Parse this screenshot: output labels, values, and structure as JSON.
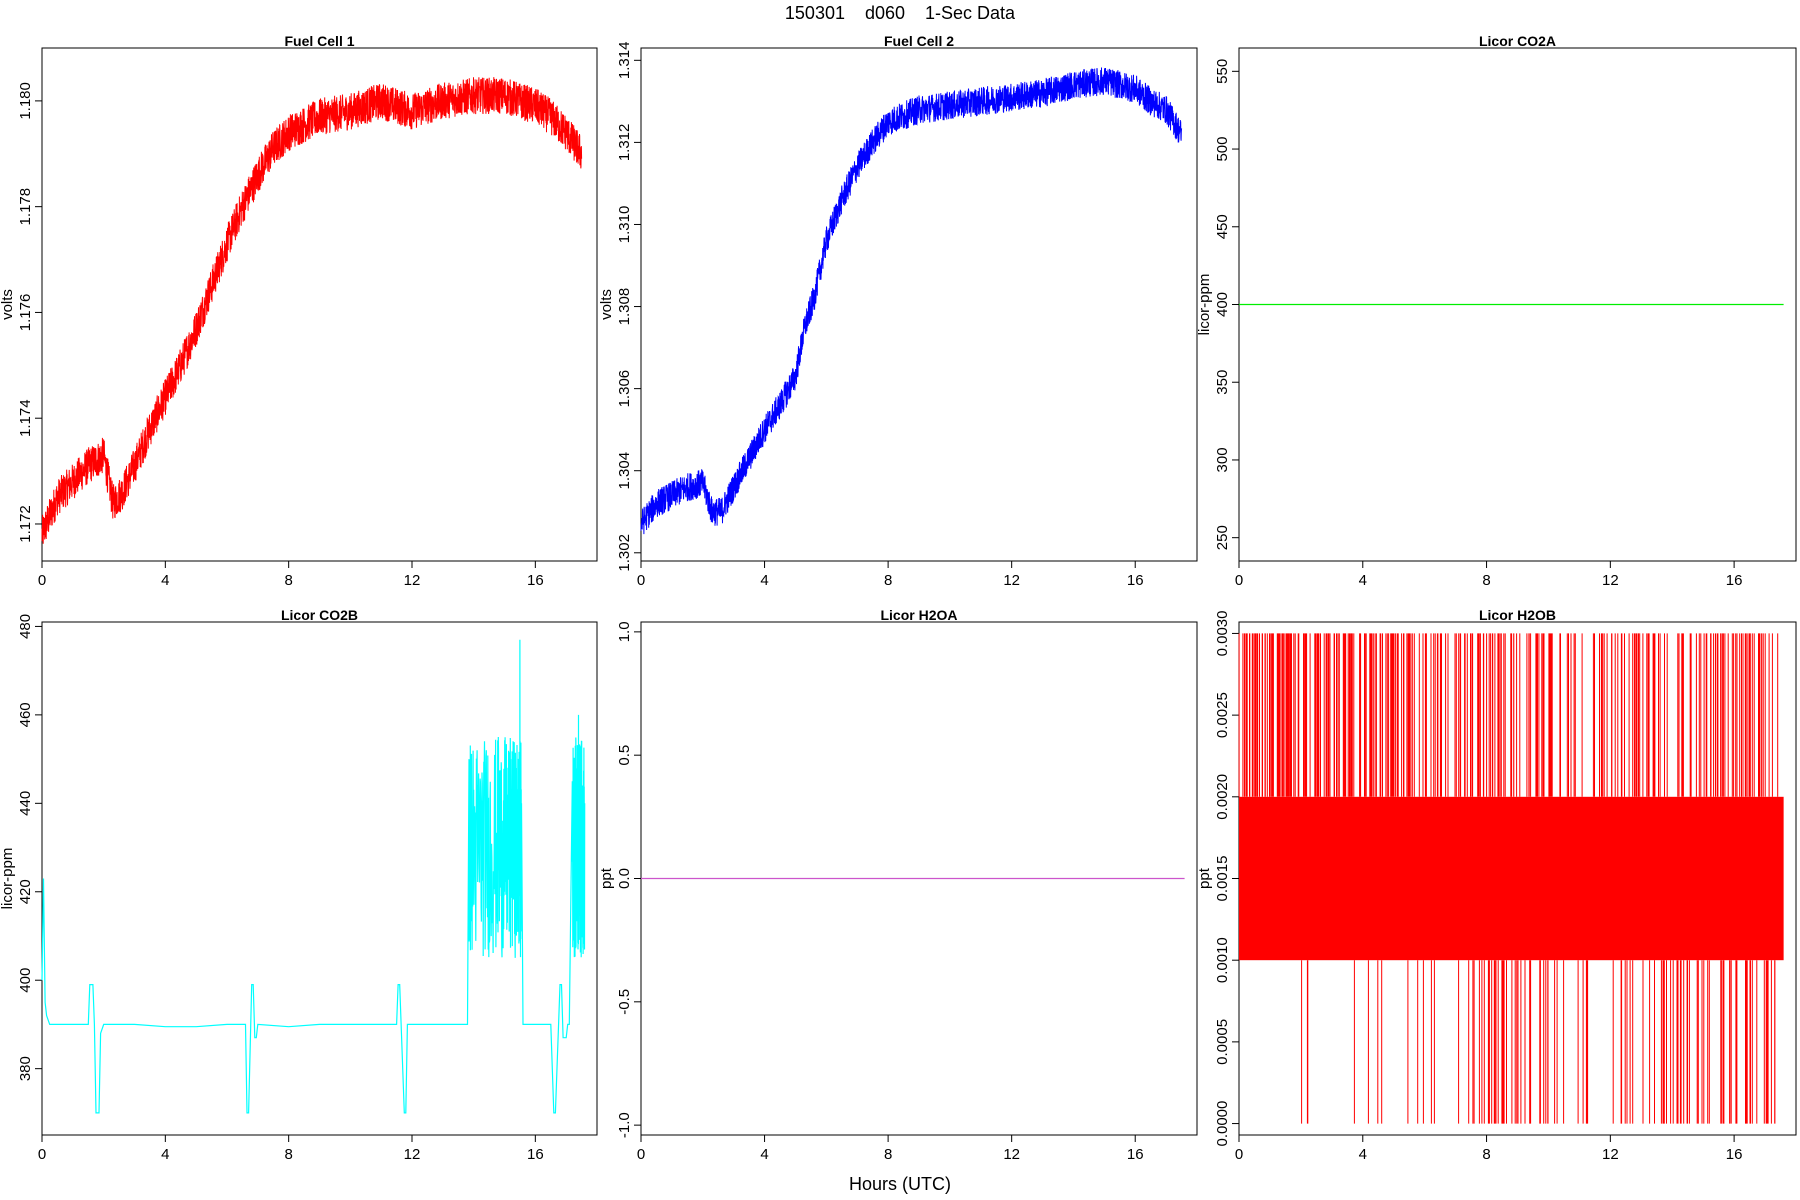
{
  "title": "150301    d060    1-Sec Data",
  "xlabel": "Hours (UTC)",
  "chart_data": [
    {
      "type": "line",
      "title": "Fuel Cell 1",
      "ylabel": "volts",
      "color": "#ff0000",
      "xlim": [
        0,
        18
      ],
      "ylim": [
        1.1713,
        1.181
      ],
      "xticks": [
        0,
        4,
        8,
        12,
        16
      ],
      "yticks": [
        1.172,
        1.174,
        1.176,
        1.178,
        1.18
      ],
      "ytick_labels": [
        "1.172",
        "1.174",
        "1.176",
        "1.178",
        "1.180"
      ],
      "noise": 0.00035,
      "x": [
        0,
        0.5,
        1,
        1.5,
        2,
        2.3,
        2.6,
        3,
        3.5,
        4,
        4.5,
        5,
        5.5,
        6,
        6.5,
        7,
        7.5,
        8,
        9,
        10,
        11,
        12,
        13,
        14,
        15,
        16,
        16.5,
        17,
        17.5
      ],
      "y": [
        1.1718,
        1.1725,
        1.1728,
        1.1731,
        1.1733,
        1.1724,
        1.1726,
        1.1731,
        1.1738,
        1.1744,
        1.175,
        1.1757,
        1.1765,
        1.1773,
        1.178,
        1.1786,
        1.1791,
        1.1794,
        1.1797,
        1.1798,
        1.18,
        1.1798,
        1.18,
        1.1801,
        1.1801,
        1.1799,
        1.1797,
        1.1794,
        1.179
      ]
    },
    {
      "type": "line",
      "title": "Fuel Cell 2",
      "ylabel": "volts",
      "color": "#0000ff",
      "xlim": [
        0,
        18
      ],
      "ylim": [
        1.3018,
        1.3143
      ],
      "xticks": [
        0,
        4,
        8,
        12,
        16
      ],
      "yticks": [
        1.302,
        1.304,
        1.306,
        1.308,
        1.31,
        1.312,
        1.314
      ],
      "ytick_labels": [
        "1.302",
        "1.304",
        "1.306",
        "1.308",
        "1.310",
        "1.312",
        "1.314"
      ],
      "noise": 0.00035,
      "x": [
        0,
        0.5,
        1,
        1.5,
        2,
        2.3,
        2.6,
        3,
        3.5,
        4,
        4.5,
        5,
        5.3,
        5.6,
        6,
        6.5,
        7,
        7.5,
        8,
        9,
        10,
        11,
        12,
        13,
        14,
        15,
        16,
        16.5,
        17,
        17.5
      ],
      "y": [
        1.3027,
        1.3032,
        1.3034,
        1.3036,
        1.3037,
        1.303,
        1.303,
        1.3036,
        1.3043,
        1.305,
        1.3056,
        1.3063,
        1.3075,
        1.3082,
        1.3096,
        1.3106,
        1.3114,
        1.312,
        1.3125,
        1.3128,
        1.3129,
        1.313,
        1.3131,
        1.3132,
        1.3134,
        1.3135,
        1.3133,
        1.313,
        1.3128,
        1.3122
      ]
    },
    {
      "type": "line",
      "title": "Licor CO2A",
      "ylabel": "licor-ppm",
      "color": "#00ee00",
      "xlim": [
        0,
        18
      ],
      "ylim": [
        235,
        565
      ],
      "xticks": [
        0,
        4,
        8,
        12,
        16
      ],
      "yticks": [
        250,
        300,
        350,
        400,
        450,
        500,
        550
      ],
      "ytick_labels": [
        "250",
        "300",
        "350",
        "400",
        "450",
        "500",
        "550"
      ],
      "noise": 0,
      "x": [
        0,
        17.6
      ],
      "y": [
        400,
        400
      ]
    },
    {
      "type": "line",
      "title": "Licor CO2B",
      "ylabel": "licor-ppm",
      "color": "#00ffff",
      "xlim": [
        0,
        18
      ],
      "ylim": [
        365,
        481
      ],
      "xticks": [
        0,
        4,
        8,
        12,
        16
      ],
      "yticks": [
        380,
        400,
        420,
        440,
        460,
        480
      ],
      "ytick_labels": [
        "380",
        "400",
        "420",
        "440",
        "460",
        "480"
      ],
      "noise": 0,
      "x": [
        0,
        0.05,
        0.1,
        0.15,
        0.25,
        0.5,
        1.0,
        1.5,
        1.55,
        1.65,
        1.7,
        1.75,
        1.85,
        1.9,
        2.0,
        2.5,
        3,
        4,
        5,
        6,
        6.6,
        6.65,
        6.7,
        6.8,
        6.85,
        6.9,
        6.95,
        7.0,
        8,
        9,
        10,
        11,
        11.5,
        11.55,
        11.6,
        11.75,
        11.8,
        11.85,
        11.9,
        12,
        13,
        13.8,
        13.85,
        13.9,
        14.2,
        14.5,
        14.8,
        15.0,
        15.2,
        15.4,
        15.5,
        15.55,
        15.6,
        15.8,
        16,
        16.3,
        16.5,
        16.6,
        16.65,
        16.8,
        16.85,
        16.9,
        17.0,
        17.05,
        17.1,
        17.2,
        17.3,
        17.4,
        17.5,
        17.6
      ],
      "y": [
        400,
        423,
        395,
        392,
        390,
        390,
        390,
        390,
        399,
        399,
        390,
        370,
        370,
        388,
        390,
        390,
        390,
        389.5,
        389.5,
        390,
        390,
        370,
        370,
        399,
        399,
        387,
        387,
        390,
        389.5,
        390,
        390,
        390,
        390,
        399,
        399,
        370,
        370,
        390,
        390,
        390,
        390,
        390,
        450,
        425,
        440,
        415,
        455,
        420,
        450,
        425,
        477,
        440,
        390,
        390,
        390,
        390,
        390,
        370,
        370,
        399,
        399,
        387,
        387,
        390,
        390,
        445,
        415,
        460,
        435,
        440
      ]
    },
    {
      "type": "line",
      "title": "Licor H2OA",
      "ylabel": "ppt",
      "color": "#cc55cc",
      "xlim": [
        0,
        18
      ],
      "ylim": [
        -1.04,
        1.04
      ],
      "xticks": [
        0,
        4,
        8,
        12,
        16
      ],
      "yticks": [
        -1.0,
        -0.5,
        0.0,
        0.5,
        1.0
      ],
      "ytick_labels": [
        "-1.0",
        "-0.5",
        "0.0",
        "0.5",
        "1.0"
      ],
      "noise": 0,
      "x": [
        0,
        17.6
      ],
      "y": [
        0,
        0
      ]
    },
    {
      "type": "line",
      "title": "Licor H2OB",
      "ylabel": "ppt",
      "color": "#ff0000",
      "xlim": [
        0,
        18
      ],
      "ylim": [
        -7e-05,
        0.00307
      ],
      "xticks": [
        0,
        4,
        8,
        12,
        16
      ],
      "yticks": [
        0.0,
        0.0005,
        0.001,
        0.0015,
        0.002,
        0.0025,
        0.003
      ],
      "ytick_labels": [
        "0.0000",
        "0.0005",
        "0.0010",
        "0.0015",
        "0.0020",
        "0.0025",
        "0.0030"
      ],
      "band": [
        0.001,
        0.002
      ],
      "levels": [
        0.0,
        0.001,
        0.002,
        0.003
      ],
      "x": [
        0,
        17.6
      ]
    }
  ]
}
